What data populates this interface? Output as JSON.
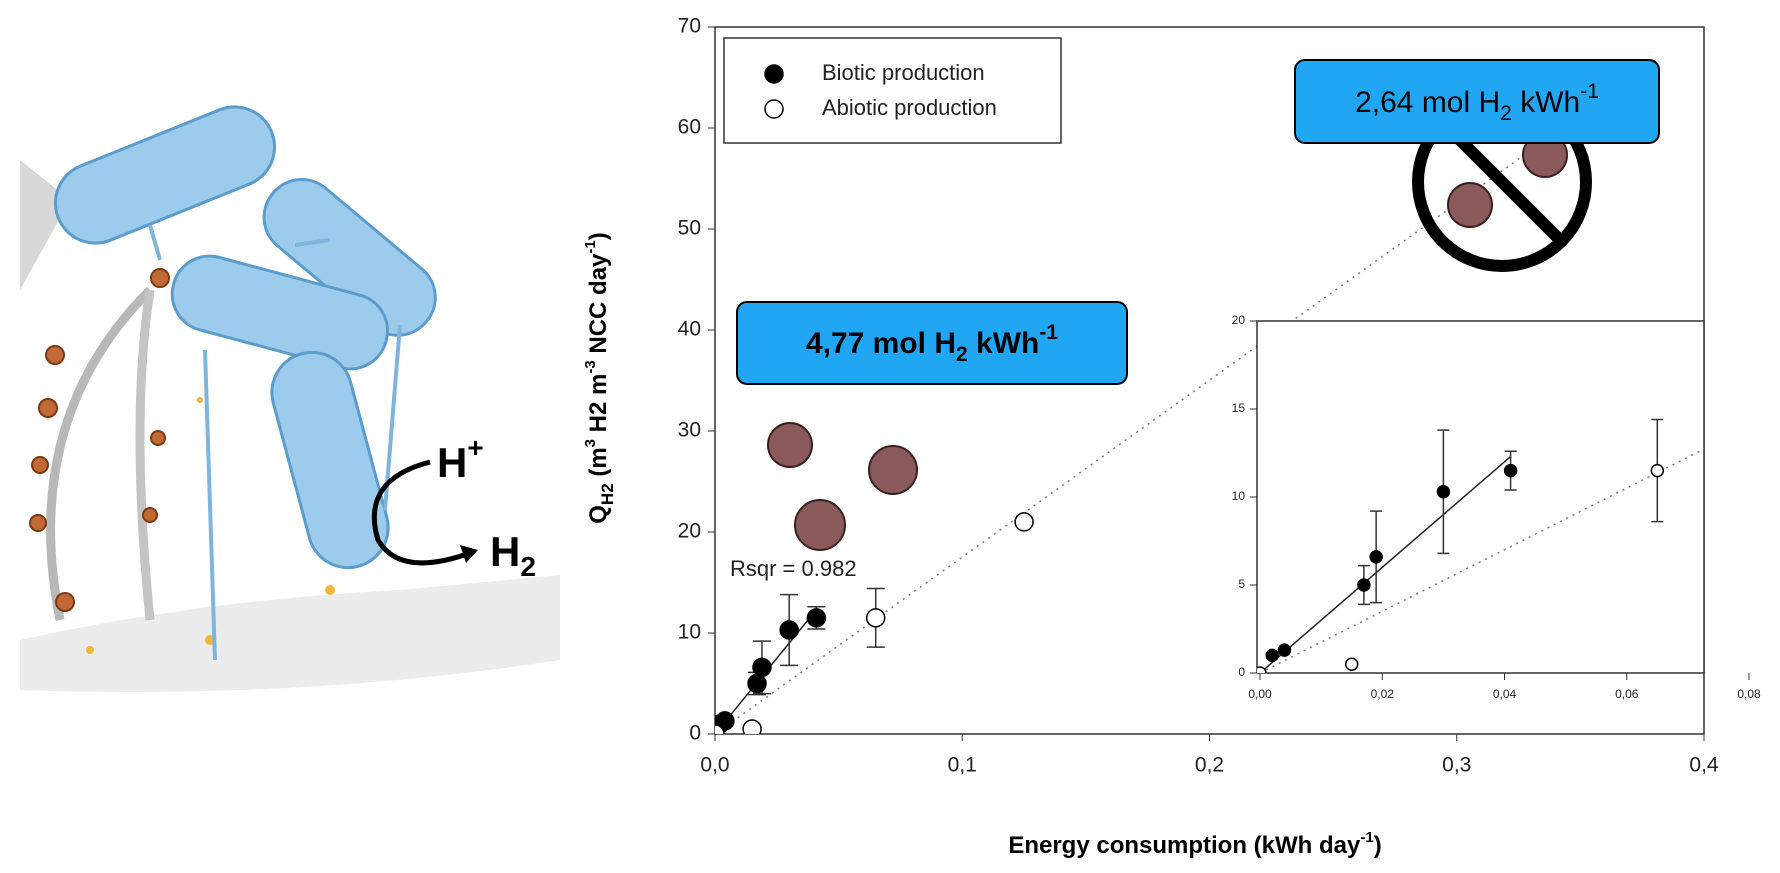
{
  "chart_data": {
    "type": "scatter",
    "x_label": [
      "Energy consumption (kWh day",
      "-1",
      ")"
    ],
    "y_label": [
      "Q",
      "H2",
      " (m",
      "3",
      " H2 m",
      "-3",
      " NCC day",
      "-1",
      ")"
    ],
    "xlim": [
      0,
      0.4
    ],
    "ylim": [
      0,
      70
    ],
    "xticks": [
      {
        "value": 0,
        "label": "0,0"
      },
      {
        "value": 0.1,
        "label": "0,1"
      },
      {
        "value": 0.2,
        "label": "0,2"
      },
      {
        "value": 0.3,
        "label": "0,3"
      },
      {
        "value": 0.4,
        "label": "0,4"
      }
    ],
    "yticks": [
      0,
      10,
      20,
      30,
      40,
      50,
      60,
      70
    ],
    "legend": "top-left",
    "series": [
      {
        "name": "Biotic production",
        "color": "#000000",
        "marker": "filled",
        "x": [
          0.002,
          0.004,
          0.017,
          0.019,
          0.03,
          0.041
        ],
        "values": [
          1.0,
          1.3,
          5.0,
          6.6,
          10.3,
          11.5
        ],
        "errors": [
          null,
          null,
          1.1,
          2.6,
          3.5,
          1.1
        ]
      },
      {
        "name": "Abiotic production",
        "color": "#000000",
        "marker": "open",
        "x": [
          0,
          0.015,
          0.065,
          0.125
        ],
        "values": [
          0,
          0.5,
          11.5,
          21
        ],
        "errors": [
          null,
          null,
          2.9,
          null
        ]
      }
    ],
    "fit_lines": [
      {
        "x": [
          0,
          0.041
        ],
        "values": [
          0,
          12.3
        ],
        "style": "solid"
      },
      {
        "x": [
          0,
          0.33
        ],
        "values": [
          0,
          57.8
        ],
        "style": "dotted"
      }
    ],
    "annotations": {
      "rsqr": "Rsqr = 0.982",
      "callout_1": [
        "4,77 mol H",
        "2",
        " kWh",
        "-1"
      ],
      "callout_2": [
        "2,64 mol H",
        "2",
        " kWh",
        "-1"
      ]
    },
    "inset": {
      "xlim": [
        0,
        0.08
      ],
      "ylim": [
        0,
        20
      ],
      "xticks": [
        {
          "value": 0,
          "label": "0,00"
        },
        {
          "value": 0.02,
          "label": "0,02"
        },
        {
          "value": 0.04,
          "label": "0,04"
        },
        {
          "value": 0.06,
          "label": "0,06"
        },
        {
          "value": 0.08,
          "label": "0,08"
        }
      ],
      "yticks": [
        0,
        5,
        10,
        15,
        20
      ]
    }
  },
  "illustration": {
    "labels": [
      "H",
      "+",
      "H",
      "2"
    ]
  }
}
